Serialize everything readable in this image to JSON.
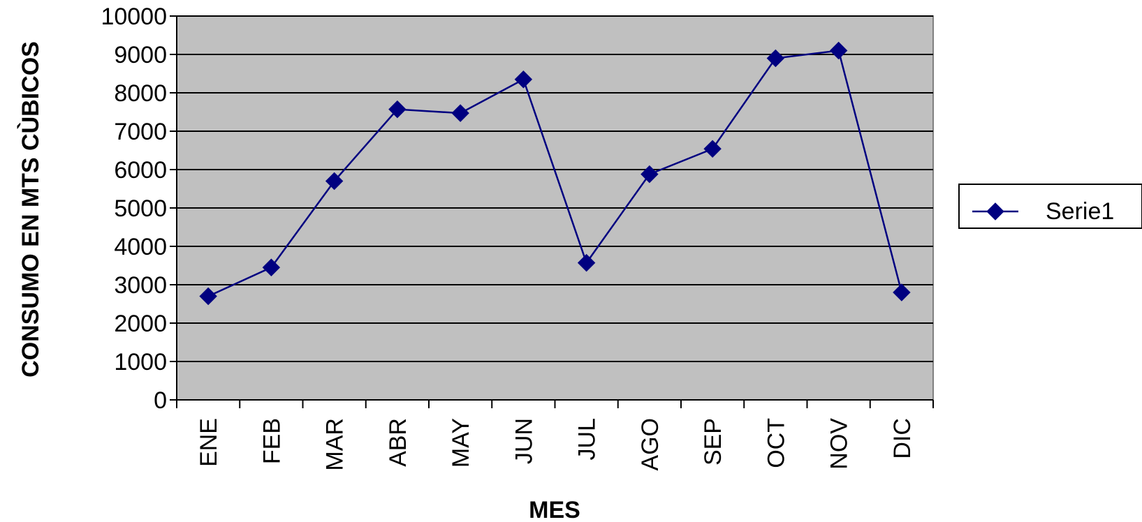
{
  "chart_data": {
    "type": "line",
    "title": "",
    "xlabel": "MES",
    "ylabel": "CONSUMO EN MTS CÙBICOS",
    "categories": [
      "ENE",
      "FEB",
      "MAR",
      "ABR",
      "MAY",
      "JUN",
      "JUL",
      "AGO",
      "SEP",
      "OCT",
      "NOV",
      "DIC"
    ],
    "series": [
      {
        "name": "Serie1",
        "values": [
          2700,
          3450,
          5700,
          7570,
          7470,
          8350,
          3570,
          5880,
          6540,
          8900,
          9100,
          2800
        ],
        "color": "#000080"
      }
    ],
    "ylim": [
      0,
      10000
    ],
    "yticks": [
      "0",
      "1000",
      "2000",
      "3000",
      "4000",
      "5000",
      "6000",
      "7000",
      "8000",
      "9000",
      "10000"
    ],
    "grid": true,
    "plot_background": "#c0c0c0",
    "legend_position": "right"
  }
}
